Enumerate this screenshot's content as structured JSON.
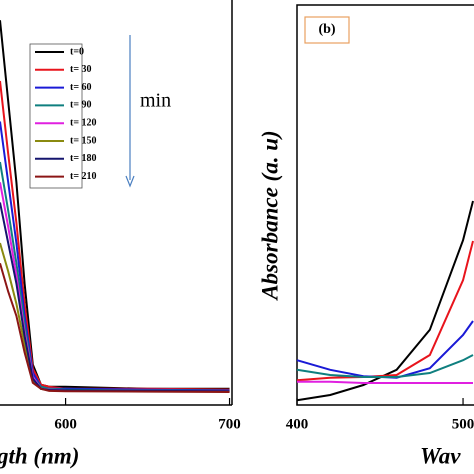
{
  "chart_data": [
    {
      "type": "line",
      "xlabel": "gth (nm)",
      "annotation": "min",
      "x": [
        560,
        565,
        570,
        575,
        580,
        585,
        590,
        600,
        650,
        700
      ],
      "xlim": [
        560,
        701.5
      ],
      "ylim": [
        0,
        1
      ],
      "xticks": [
        600,
        700
      ],
      "series": [
        {
          "name": "t=0",
          "color": "#000000",
          "values": [
            0.95,
            0.75,
            0.55,
            0.3,
            0.1,
            0.05,
            0.045,
            0.045,
            0.04,
            0.04
          ]
        },
        {
          "name": "t= 30",
          "color": "#e8141c",
          "values": [
            0.8,
            0.62,
            0.45,
            0.25,
            0.09,
            0.05,
            0.045,
            0.04,
            0.04,
            0.038
          ]
        },
        {
          "name": "t= 60",
          "color": "#1a1ad6",
          "values": [
            0.7,
            0.55,
            0.4,
            0.22,
            0.08,
            0.045,
            0.04,
            0.04,
            0.038,
            0.036
          ]
        },
        {
          "name": "t= 90",
          "color": "#0f7f7f",
          "values": [
            0.6,
            0.48,
            0.35,
            0.2,
            0.07,
            0.045,
            0.04,
            0.038,
            0.036,
            0.035
          ]
        },
        {
          "name": "t= 120",
          "color": "#e020e0",
          "values": [
            0.55,
            0.44,
            0.32,
            0.18,
            0.07,
            0.04,
            0.038,
            0.036,
            0.035,
            0.034
          ]
        },
        {
          "name": "t= 150",
          "color": "#8a8a10",
          "values": [
            0.4,
            0.33,
            0.25,
            0.15,
            0.06,
            0.04,
            0.036,
            0.035,
            0.034,
            0.033
          ]
        },
        {
          "name": "t= 180",
          "color": "#15156e",
          "values": [
            0.5,
            0.4,
            0.3,
            0.17,
            0.065,
            0.04,
            0.037,
            0.036,
            0.035,
            0.034
          ]
        },
        {
          "name": "t= 210",
          "color": "#8b1515",
          "values": [
            0.35,
            0.28,
            0.22,
            0.13,
            0.055,
            0.04,
            0.035,
            0.034,
            0.033,
            0.032
          ]
        }
      ]
    },
    {
      "type": "line",
      "panel_label": "(b)",
      "ylabel": "Absorbance (a. u)",
      "xlabel": "Wav",
      "x": [
        400,
        420,
        440,
        460,
        480,
        500,
        506
      ],
      "xlim": [
        400,
        506.6
      ],
      "ylim": [
        0,
        1
      ],
      "xticks": [
        400,
        500
      ],
      "series": [
        {
          "color": "#000000",
          "values": [
            0.012,
            0.025,
            0.05,
            0.088,
            0.188,
            0.412,
            0.51
          ]
        },
        {
          "color": "#e8141c",
          "values": [
            0.062,
            0.068,
            0.07,
            0.075,
            0.125,
            0.312,
            0.41
          ]
        },
        {
          "color": "#1a1ad6",
          "values": [
            0.112,
            0.088,
            0.072,
            0.068,
            0.092,
            0.175,
            0.21
          ]
        },
        {
          "color": "#0f7f7f",
          "values": [
            0.088,
            0.075,
            0.07,
            0.07,
            0.08,
            0.112,
            0.125
          ]
        },
        {
          "color": "#e020e0",
          "values": [
            0.058,
            0.058,
            0.055,
            0.055,
            0.055,
            0.055,
            0.055
          ]
        }
      ]
    }
  ]
}
